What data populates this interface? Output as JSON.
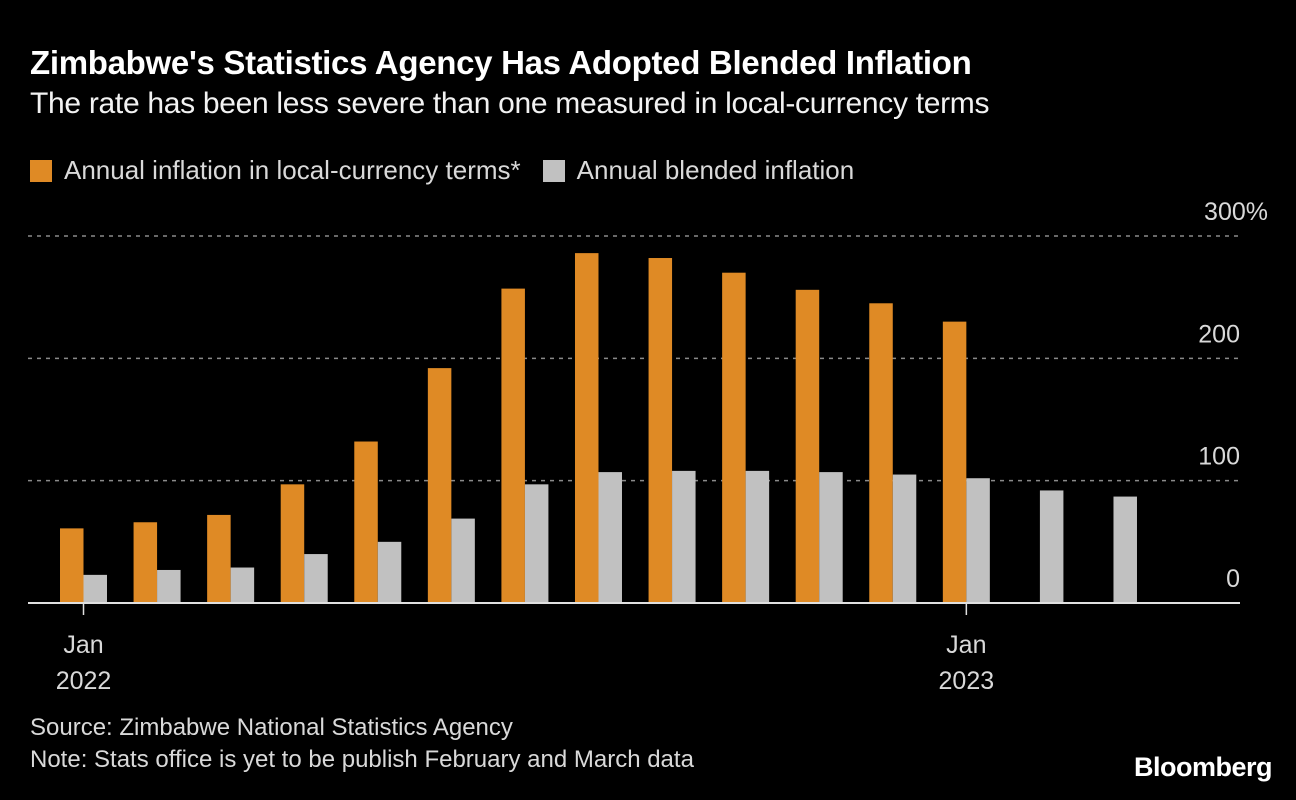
{
  "header": {
    "title": "Zimbabwe's Statistics Agency Has Adopted Blended Inflation",
    "subtitle": "The rate has been less severe than one measured in local-currency terms"
  },
  "legend": [
    {
      "label": "Annual inflation in local-currency terms*",
      "color": "#df8a25"
    },
    {
      "label": "Annual blended inflation",
      "color": "#c1c1c1"
    }
  ],
  "footer": {
    "source": "Source: Zimbabwe National Statistics Agency",
    "note": "Note: Stats office is yet to be publish February and March data",
    "logo": "Bloomberg"
  },
  "chart_data": {
    "type": "bar",
    "title": "Zimbabwe's Statistics Agency Has Adopted Blended Inflation",
    "subtitle": "The rate has been less severe than one measured in local-currency terms",
    "xlabel": "",
    "ylabel": "",
    "categories": [
      "Jan 2022",
      "Feb 2022",
      "Mar 2022",
      "Apr 2022",
      "May 2022",
      "Jun 2022",
      "Jul 2022",
      "Aug 2022",
      "Sep 2022",
      "Oct 2022",
      "Nov 2022",
      "Dec 2022",
      "Jan 2023",
      "Feb 2023",
      "Mar 2023"
    ],
    "series": [
      {
        "name": "Annual inflation in local-currency terms*",
        "color": "#df8a25",
        "values": [
          61,
          66,
          72,
          97,
          132,
          192,
          257,
          286,
          282,
          270,
          256,
          245,
          230,
          null,
          null
        ]
      },
      {
        "name": "Annual blended inflation",
        "color": "#c1c1c1",
        "values": [
          23,
          27,
          29,
          40,
          50,
          69,
          97,
          107,
          108,
          108,
          107,
          105,
          102,
          92,
          87
        ]
      }
    ],
    "ylim": [
      0,
      300
    ],
    "yticks": [
      0,
      100,
      200,
      300
    ],
    "ytick_labels": [
      "0",
      "100",
      "200",
      "300%"
    ],
    "xtick_labels": [
      {
        "category": "Jan 2022",
        "line1": "Jan",
        "line2": "2022"
      },
      {
        "category": "Jan 2023",
        "line1": "Jan",
        "line2": "2023"
      }
    ],
    "grid": true,
    "grid_style": "dashed",
    "y_axis_position": "right",
    "legend_position": "top-left"
  }
}
